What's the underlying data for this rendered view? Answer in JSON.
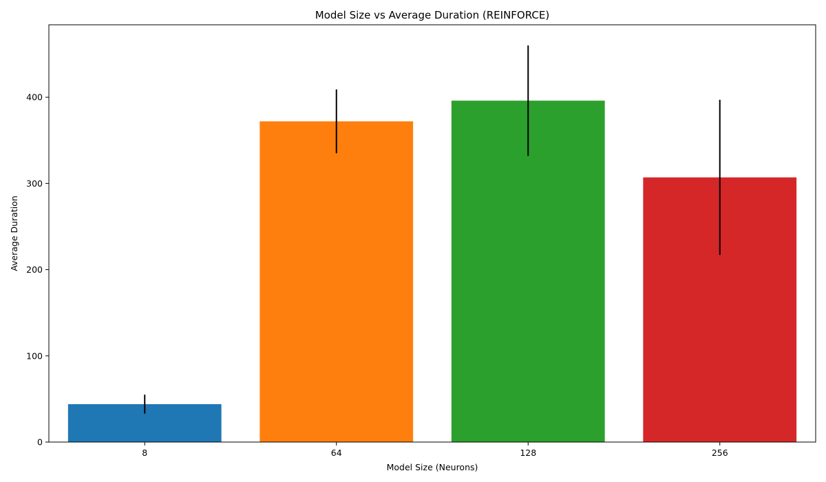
{
  "chart_data": {
    "type": "bar",
    "title": "Model Size vs Average Duration (REINFORCE)",
    "xlabel": "Model Size (Neurons)",
    "ylabel": "Average Duration",
    "categories": [
      "8",
      "64",
      "128",
      "256"
    ],
    "values": [
      44,
      372,
      396,
      307
    ],
    "errors": [
      11,
      37,
      64,
      90
    ],
    "colors": [
      "#1f77b4",
      "#ff7f0e",
      "#2ca02c",
      "#d62728"
    ],
    "error_color": "#000000",
    "ylim": [
      0,
      484
    ],
    "yticks": [
      0,
      100,
      200,
      300,
      400
    ],
    "grid": false,
    "legend": "none"
  }
}
